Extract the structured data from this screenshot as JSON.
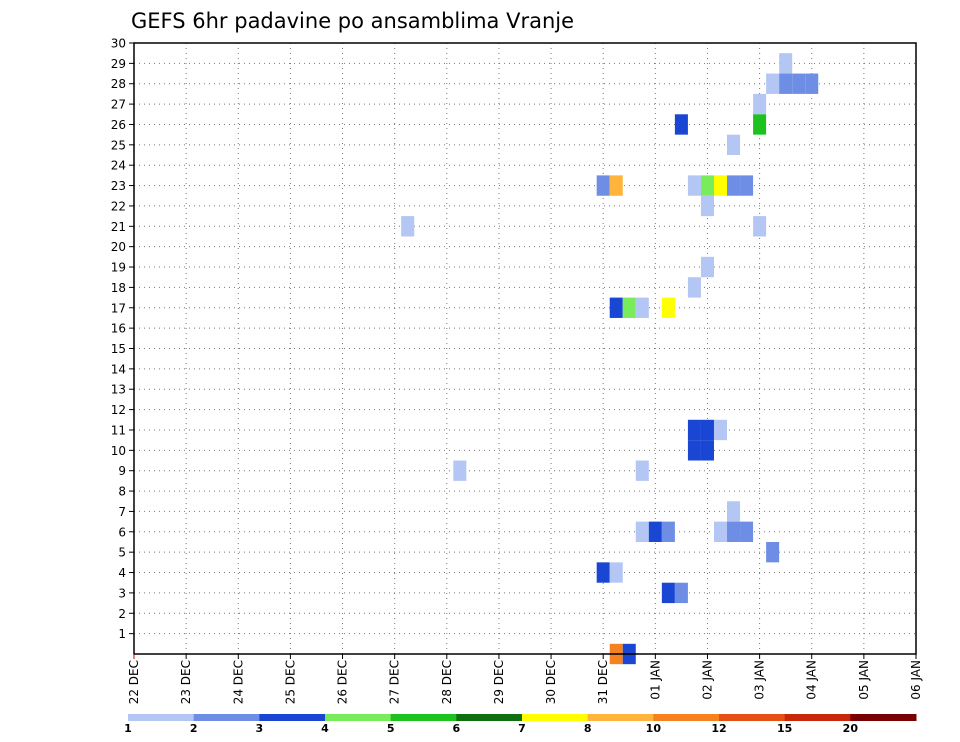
{
  "chart_data": {
    "type": "heatmap",
    "title": "GEFS 6hr padavine po ansamblima Vranje",
    "xlabel": "",
    "ylabel": "",
    "grid": true,
    "y_ticks": [
      "1",
      "2",
      "3",
      "4",
      "5",
      "6",
      "7",
      "8",
      "9",
      "10",
      "11",
      "12",
      "13",
      "14",
      "15",
      "16",
      "17",
      "18",
      "19",
      "20",
      "21",
      "22",
      "23",
      "24",
      "25",
      "26",
      "27",
      "28",
      "29",
      "30"
    ],
    "x_ticks": [
      "22 DEC",
      "23 DEC",
      "24 DEC",
      "25 DEC",
      "26 DEC",
      "27 DEC",
      "28 DEC",
      "29 DEC",
      "30 DEC",
      "31 DEC",
      "01 JAN",
      "02 JAN",
      "03 JAN",
      "04 JAN",
      "05 JAN",
      "06 JAN"
    ],
    "colorbar": {
      "labels": [
        "1",
        "2",
        "3",
        "4",
        "5",
        "6",
        "7",
        "8",
        "10",
        "12",
        "15",
        "20"
      ],
      "colors": [
        "#b4c6f4",
        "#6e8ee6",
        "#1a46d4",
        "#78ec5a",
        "#1ec21e",
        "#0e700e",
        "#ffff00",
        "#ffb43c",
        "#f5821e",
        "#e65014",
        "#c8280a",
        "#780000"
      ]
    },
    "cells": [
      {
        "member": 29,
        "time": "03 JAN 12Z",
        "value": 1.5
      },
      {
        "member": 28,
        "time": "03 JAN 06Z",
        "value": 1.5
      },
      {
        "member": 28,
        "time": "03 JAN 12Z",
        "value": 2.5
      },
      {
        "member": 28,
        "time": "03 JAN 18Z",
        "value": 2.5
      },
      {
        "member": 28,
        "time": "04 JAN 00Z",
        "value": 2.5
      },
      {
        "member": 27,
        "time": "03 JAN 00Z",
        "value": 1.5
      },
      {
        "member": 26,
        "time": "01 JAN 12Z",
        "value": 3.5
      },
      {
        "member": 26,
        "time": "03 JAN 00Z",
        "value": 5.5
      },
      {
        "member": 25,
        "time": "02 JAN 12Z",
        "value": 1.5
      },
      {
        "member": 23,
        "time": "31 DEC 00Z",
        "value": 2.5
      },
      {
        "member": 23,
        "time": "31 DEC 06Z",
        "value": 9.0
      },
      {
        "member": 23,
        "time": "01 JAN 18Z",
        "value": 1.5
      },
      {
        "member": 23,
        "time": "02 JAN 00Z",
        "value": 4.5
      },
      {
        "member": 23,
        "time": "02 JAN 06Z",
        "value": 7.5
      },
      {
        "member": 23,
        "time": "02 JAN 12Z",
        "value": 2.5
      },
      {
        "member": 23,
        "time": "02 JAN 18Z",
        "value": 2.5
      },
      {
        "member": 22,
        "time": "02 JAN 00Z",
        "value": 1.5
      },
      {
        "member": 21,
        "time": "27 DEC 06Z",
        "value": 1.5
      },
      {
        "member": 21,
        "time": "03 JAN 00Z",
        "value": 1.5
      },
      {
        "member": 19,
        "time": "02 JAN 00Z",
        "value": 1.5
      },
      {
        "member": 18,
        "time": "01 JAN 18Z",
        "value": 1.5
      },
      {
        "member": 17,
        "time": "31 DEC 06Z",
        "value": 3.5
      },
      {
        "member": 17,
        "time": "31 DEC 12Z",
        "value": 4.5
      },
      {
        "member": 17,
        "time": "31 DEC 18Z",
        "value": 1.5
      },
      {
        "member": 17,
        "time": "01 JAN 06Z",
        "value": 7.5
      },
      {
        "member": 11,
        "time": "01 JAN 18Z",
        "value": 3.5
      },
      {
        "member": 11,
        "time": "02 JAN 00Z",
        "value": 3.5
      },
      {
        "member": 11,
        "time": "02 JAN 06Z",
        "value": 1.5
      },
      {
        "member": 10,
        "time": "01 JAN 18Z",
        "value": 3.5
      },
      {
        "member": 10,
        "time": "02 JAN 00Z",
        "value": 3.5
      },
      {
        "member": 9,
        "time": "28 DEC 06Z",
        "value": 1.5
      },
      {
        "member": 9,
        "time": "31 DEC 18Z",
        "value": 1.5
      },
      {
        "member": 7,
        "time": "02 JAN 12Z",
        "value": 1.5
      },
      {
        "member": 6,
        "time": "31 DEC 18Z",
        "value": 1.5
      },
      {
        "member": 6,
        "time": "01 JAN 00Z",
        "value": 3.5
      },
      {
        "member": 6,
        "time": "01 JAN 06Z",
        "value": 2.5
      },
      {
        "member": 6,
        "time": "02 JAN 06Z",
        "value": 1.5
      },
      {
        "member": 6,
        "time": "02 JAN 12Z",
        "value": 2.5
      },
      {
        "member": 6,
        "time": "02 JAN 18Z",
        "value": 2.5
      },
      {
        "member": 5,
        "time": "03 JAN 06Z",
        "value": 2.5
      },
      {
        "member": 4,
        "time": "31 DEC 00Z",
        "value": 3.5
      },
      {
        "member": 4,
        "time": "31 DEC 06Z",
        "value": 1.5
      },
      {
        "member": 3,
        "time": "01 JAN 06Z",
        "value": 3.5
      },
      {
        "member": 3,
        "time": "01 JAN 12Z",
        "value": 2.5
      },
      {
        "member": 0,
        "time": "31 DEC 06Z",
        "value": 11.0
      },
      {
        "member": 0,
        "time": "31 DEC 12Z",
        "value": 3.5
      }
    ]
  }
}
